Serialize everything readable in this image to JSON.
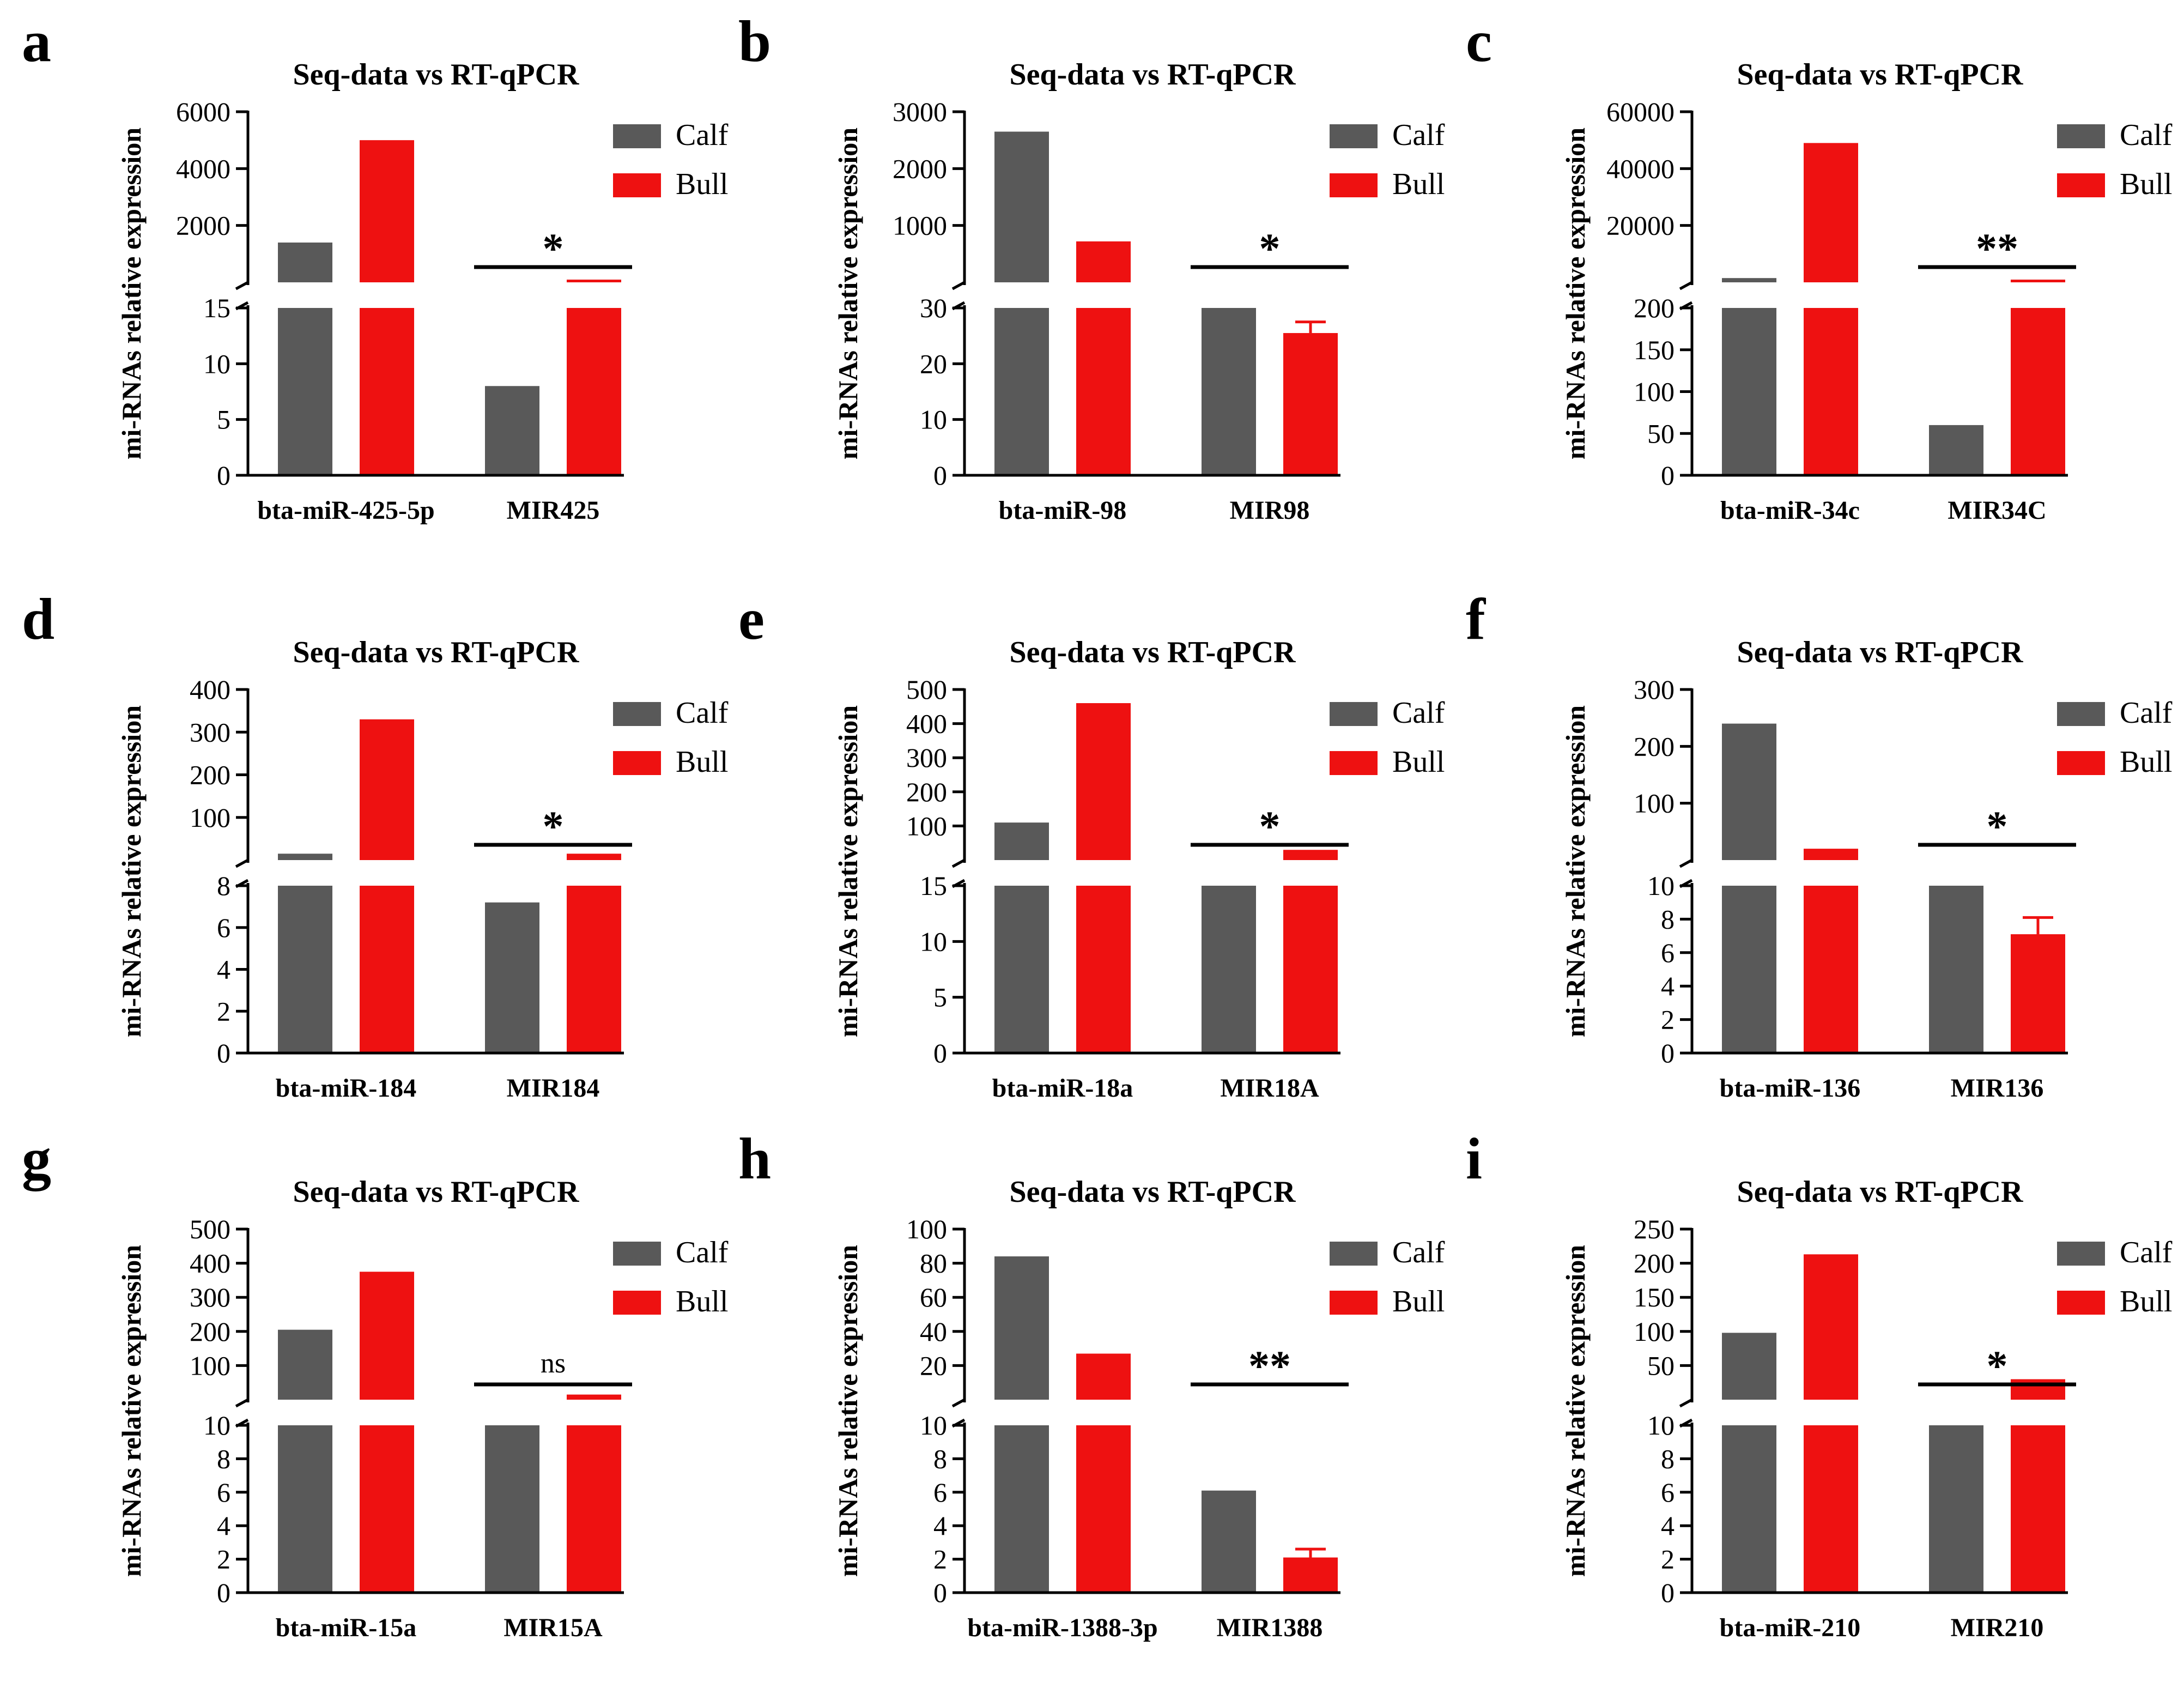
{
  "figure": {
    "ylabel": "mi-RNAs relative expression",
    "colors": {
      "calf": "#595959",
      "bull": "#ee1111",
      "axis": "#000000"
    },
    "legend": {
      "calf": "Calf",
      "bull": "Bull"
    }
  },
  "chart_data": [
    {
      "panel": "a",
      "type": "bar",
      "title": "Seq-data vs RT-qPCR",
      "ylabel": "mi-RNAs relative expression",
      "categories": [
        "bta-miR-425-5p",
        "MIR425"
      ],
      "series": [
        {
          "name": "Calf",
          "values": [
            1400,
            8
          ],
          "errors": [
            0,
            0
          ]
        },
        {
          "name": "Bull",
          "values": [
            5000,
            40
          ],
          "errors": [
            0,
            0
          ]
        }
      ],
      "significance": "*",
      "legend_position": "top-right",
      "lower": {
        "range": [
          0,
          15
        ],
        "ticks": [
          0,
          5,
          10,
          15
        ]
      },
      "upper": {
        "range": [
          0,
          6000
        ],
        "ticks": [
          2000,
          4000,
          6000
        ]
      }
    },
    {
      "panel": "b",
      "type": "bar",
      "title": "Seq-data vs RT-qPCR",
      "ylabel": "mi-RNAs relative expression",
      "categories": [
        "bta-miR-98",
        "MIR98"
      ],
      "series": [
        {
          "name": "Calf",
          "values": [
            2650,
            30
          ],
          "errors": [
            0,
            0
          ]
        },
        {
          "name": "Bull",
          "values": [
            720,
            25.5
          ],
          "errors": [
            0,
            2
          ]
        }
      ],
      "significance": "*",
      "legend_position": "top-right",
      "lower": {
        "range": [
          0,
          30
        ],
        "ticks": [
          0,
          10,
          20,
          30
        ]
      },
      "upper": {
        "range": [
          0,
          3000
        ],
        "ticks": [
          1000,
          2000,
          3000
        ]
      }
    },
    {
      "panel": "c",
      "type": "bar",
      "title": "Seq-data vs RT-qPCR",
      "ylabel": "mi-RNAs relative expression",
      "categories": [
        "bta-miR-34c",
        "MIR34C"
      ],
      "series": [
        {
          "name": "Calf",
          "values": [
            1500,
            60
          ],
          "errors": [
            0,
            0
          ]
        },
        {
          "name": "Bull",
          "values": [
            49000,
            210
          ],
          "errors": [
            0,
            0
          ]
        }
      ],
      "significance": "**",
      "legend_position": "top-right",
      "lower": {
        "range": [
          0,
          200
        ],
        "ticks": [
          0,
          50,
          100,
          150,
          200
        ]
      },
      "upper": {
        "range": [
          0,
          60000
        ],
        "ticks": [
          20000,
          40000,
          60000
        ]
      }
    },
    {
      "panel": "d",
      "type": "bar",
      "title": "Seq-data vs RT-qPCR",
      "ylabel": "mi-RNAs relative expression",
      "categories": [
        "bta-miR-184",
        "MIR184"
      ],
      "series": [
        {
          "name": "Calf",
          "values": [
            15,
            7.2
          ],
          "errors": [
            0,
            0
          ]
        },
        {
          "name": "Bull",
          "values": [
            330,
            15
          ],
          "errors": [
            0,
            0
          ]
        }
      ],
      "significance": "*",
      "legend_position": "top-right",
      "lower": {
        "range": [
          0,
          8
        ],
        "ticks": [
          0,
          2,
          4,
          6,
          8
        ]
      },
      "upper": {
        "range": [
          0,
          400
        ],
        "ticks": [
          100,
          200,
          300,
          400
        ]
      }
    },
    {
      "panel": "e",
      "type": "bar",
      "title": "Seq-data vs RT-qPCR",
      "ylabel": "mi-RNAs relative expression",
      "categories": [
        "bta-miR-18a",
        "MIR18A"
      ],
      "series": [
        {
          "name": "Calf",
          "values": [
            110,
            15
          ],
          "errors": [
            0,
            0
          ]
        },
        {
          "name": "Bull",
          "values": [
            460,
            30
          ],
          "errors": [
            0,
            0
          ]
        }
      ],
      "significance": "*",
      "legend_position": "top-right",
      "lower": {
        "range": [
          0,
          15
        ],
        "ticks": [
          0,
          5,
          10,
          15
        ]
      },
      "upper": {
        "range": [
          0,
          500
        ],
        "ticks": [
          100,
          200,
          300,
          400,
          500
        ]
      }
    },
    {
      "panel": "f",
      "type": "bar",
      "title": "Seq-data vs RT-qPCR",
      "ylabel": "mi-RNAs relative expression",
      "categories": [
        "bta-miR-136",
        "MIR136"
      ],
      "series": [
        {
          "name": "Calf",
          "values": [
            240,
            10
          ],
          "errors": [
            0,
            0
          ]
        },
        {
          "name": "Bull",
          "values": [
            20,
            7.1
          ],
          "errors": [
            0,
            1
          ]
        }
      ],
      "significance": "*",
      "legend_position": "top-right",
      "lower": {
        "range": [
          0,
          10
        ],
        "ticks": [
          0,
          2,
          4,
          6,
          8,
          10
        ]
      },
      "upper": {
        "range": [
          0,
          300
        ],
        "ticks": [
          100,
          200,
          300
        ]
      }
    },
    {
      "panel": "g",
      "type": "bar",
      "title": "Seq-data vs RT-qPCR",
      "ylabel": "mi-RNAs relative expression",
      "categories": [
        "bta-miR-15a",
        "MIR15A"
      ],
      "series": [
        {
          "name": "Calf",
          "values": [
            205,
            10
          ],
          "errors": [
            0,
            0
          ]
        },
        {
          "name": "Bull",
          "values": [
            375,
            15
          ],
          "errors": [
            0,
            0
          ]
        }
      ],
      "significance": "ns",
      "legend_position": "top-right",
      "lower": {
        "range": [
          0,
          10
        ],
        "ticks": [
          0,
          2,
          4,
          6,
          8,
          10
        ]
      },
      "upper": {
        "range": [
          0,
          500
        ],
        "ticks": [
          100,
          200,
          300,
          400,
          500
        ]
      }
    },
    {
      "panel": "h",
      "type": "bar",
      "title": "Seq-data vs RT-qPCR",
      "ylabel": "mi-RNAs relative expression",
      "categories": [
        "bta-miR-1388-3p",
        "MIR1388"
      ],
      "series": [
        {
          "name": "Calf",
          "values": [
            84,
            6.1
          ],
          "errors": [
            0,
            0
          ]
        },
        {
          "name": "Bull",
          "values": [
            27,
            2.1
          ],
          "errors": [
            0,
            0.5
          ]
        }
      ],
      "significance": "**",
      "legend_position": "top-right",
      "lower": {
        "range": [
          0,
          10
        ],
        "ticks": [
          0,
          2,
          4,
          6,
          8,
          10
        ]
      },
      "upper": {
        "range": [
          0,
          100
        ],
        "ticks": [
          20,
          40,
          60,
          80,
          100
        ]
      }
    },
    {
      "panel": "i",
      "type": "bar",
      "title": "Seq-data vs RT-qPCR",
      "ylabel": "mi-RNAs relative expression",
      "categories": [
        "bta-miR-210",
        "MIR210"
      ],
      "series": [
        {
          "name": "Calf",
          "values": [
            98,
            10
          ],
          "errors": [
            0,
            0
          ]
        },
        {
          "name": "Bull",
          "values": [
            213,
            30
          ],
          "errors": [
            0,
            0
          ]
        }
      ],
      "significance": "*",
      "legend_position": "top-right",
      "lower": {
        "range": [
          0,
          10
        ],
        "ticks": [
          0,
          2,
          4,
          6,
          8,
          10
        ]
      },
      "upper": {
        "range": [
          0,
          250
        ],
        "ticks": [
          50,
          100,
          150,
          200,
          250
        ]
      }
    }
  ]
}
